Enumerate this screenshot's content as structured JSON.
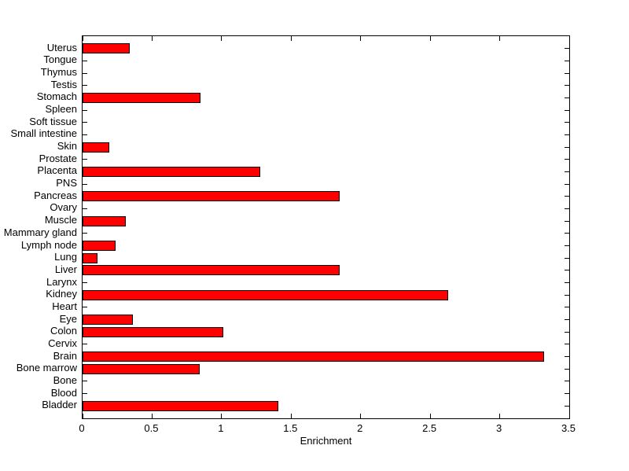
{
  "chart_data": {
    "type": "bar",
    "orientation": "horizontal",
    "title": "",
    "xlabel": "Enrichment",
    "ylabel": "",
    "categories": [
      "Uterus",
      "Tongue",
      "Thymus",
      "Testis",
      "Stomach",
      "Spleen",
      "Soft tissue",
      "Small intestine",
      "Skin",
      "Prostate",
      "Placenta",
      "PNS",
      "Pancreas",
      "Ovary",
      "Muscle",
      "Mammary gland",
      "Lymph node",
      "Lung",
      "Liver",
      "Larynx",
      "Kidney",
      "Heart",
      "Eye",
      "Colon",
      "Cervix",
      "Brain",
      "Bone marrow",
      "Bone",
      "Blood",
      "Bladder"
    ],
    "values": [
      0.34,
      0,
      0,
      0,
      0.85,
      0,
      0,
      0,
      0.19,
      0,
      1.28,
      0,
      1.85,
      0,
      0.31,
      0,
      0.24,
      0.11,
      1.85,
      0,
      2.63,
      0,
      0.36,
      1.01,
      0,
      3.32,
      0.84,
      0,
      0,
      1.41
    ],
    "xlim": [
      0,
      3.5
    ],
    "xticks": [
      0,
      0.5,
      1,
      1.5,
      2,
      2.5,
      3,
      3.5
    ],
    "xtick_labels": [
      "0",
      "0.5",
      "1",
      "1.5",
      "2",
      "2.5",
      "3",
      "3.5"
    ],
    "grid": false,
    "legend": "none",
    "bar_color": "#FF0000",
    "bar_edge_color": "#000000",
    "axis_color": "#000000",
    "background_color": "#FFFFFF"
  }
}
